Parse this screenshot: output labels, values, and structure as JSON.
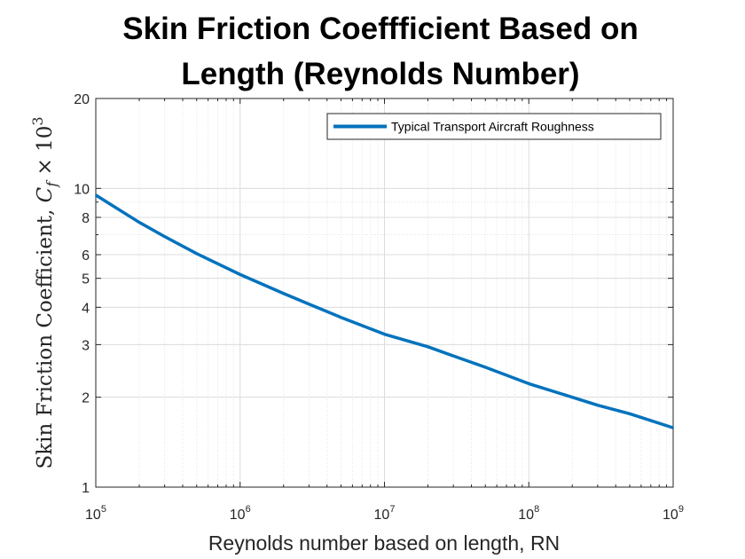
{
  "chart_data": {
    "type": "line",
    "title_lines": [
      "Skin Friction Coeffficient Based on",
      "Length (Reynolds Number)"
    ],
    "xlabel": "Reynolds number based on length, RN",
    "ylabel": "Skin Friction Coefficient, C_f × 10^3",
    "ylabel_parts": {
      "text": "Skin Friction Coefficient, ",
      "var": "C",
      "sub": "f",
      "times": " × 10",
      "sup": "3"
    },
    "xscale": "log",
    "yscale": "log",
    "xlim": [
      100000,
      1000000000
    ],
    "ylim": [
      1,
      20
    ],
    "x_ticks": [
      {
        "base": "10",
        "exp": "5"
      },
      {
        "base": "10",
        "exp": "6"
      },
      {
        "base": "10",
        "exp": "7"
      },
      {
        "base": "10",
        "exp": "8"
      },
      {
        "base": "10",
        "exp": "9"
      }
    ],
    "y_ticks": [
      "1",
      "2",
      "3",
      "4",
      "5",
      "6",
      "8",
      "10",
      "20"
    ],
    "y_tick_values": [
      1,
      2,
      3,
      4,
      5,
      6,
      8,
      10,
      20
    ],
    "grid": true,
    "minor_grid": true,
    "legend_position": "top-right",
    "series": [
      {
        "name": "Typical Transport Aircraft Roughness",
        "color": "#0072BD",
        "x": [
          100000,
          200000,
          300000,
          500000,
          1000000,
          2000000,
          3000000,
          5000000,
          10000000,
          20000000,
          30000000,
          50000000,
          100000000,
          200000000,
          300000000,
          500000000,
          1000000000
        ],
        "y": [
          9.5,
          7.7,
          6.9,
          6.05,
          5.15,
          4.45,
          4.1,
          3.7,
          3.25,
          2.95,
          2.75,
          2.52,
          2.22,
          2.0,
          1.88,
          1.76,
          1.58
        ]
      }
    ]
  }
}
